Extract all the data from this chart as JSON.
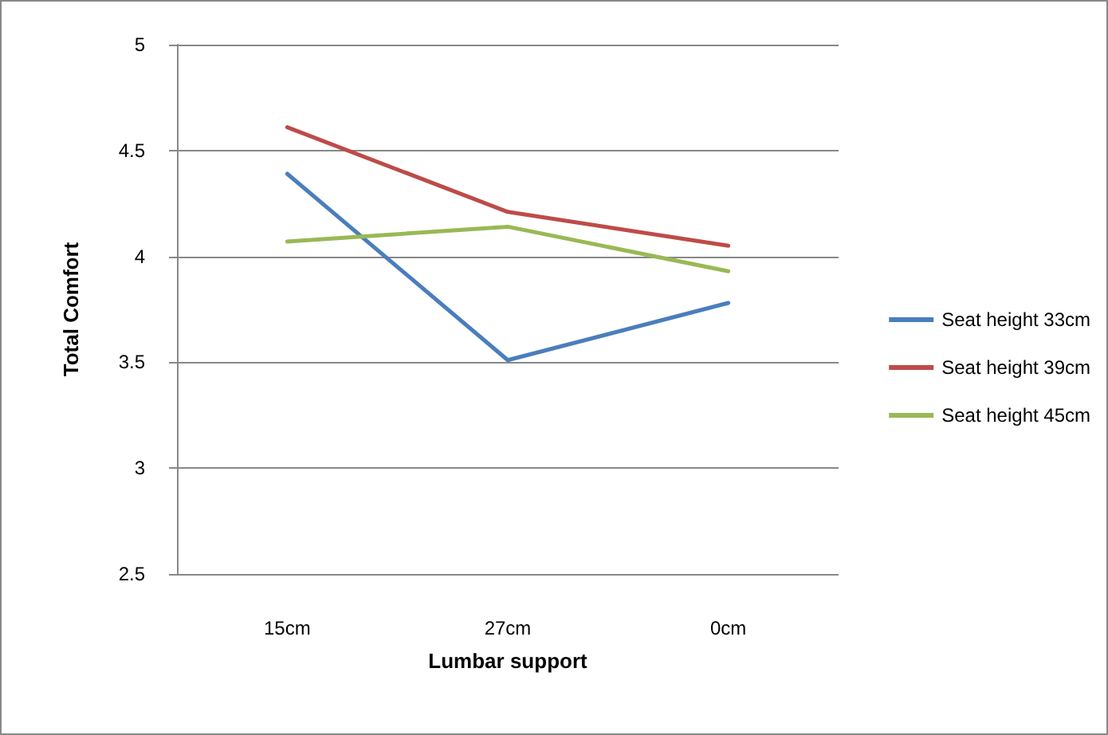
{
  "chart_data": {
    "type": "line",
    "xlabel": "Lumbar support",
    "ylabel": "Total Comfort",
    "categories": [
      "15cm",
      "27cm",
      "0cm"
    ],
    "series": [
      {
        "name": "Seat height 33cm",
        "color": "#4a7ebb",
        "values": [
          4.39,
          3.51,
          3.78
        ]
      },
      {
        "name": "Seat height 39cm",
        "color": "#be4b48",
        "values": [
          4.61,
          4.21,
          4.05
        ]
      },
      {
        "name": "Seat height 45cm",
        "color": "#98b954",
        "values": [
          4.07,
          4.14,
          3.93
        ]
      }
    ],
    "ylim": [
      2.5,
      5
    ],
    "yticks": [
      2.5,
      3,
      3.5,
      4,
      4.5,
      5
    ],
    "grid": "y",
    "legend": "right",
    "marker": "none",
    "line_style": "solid"
  }
}
